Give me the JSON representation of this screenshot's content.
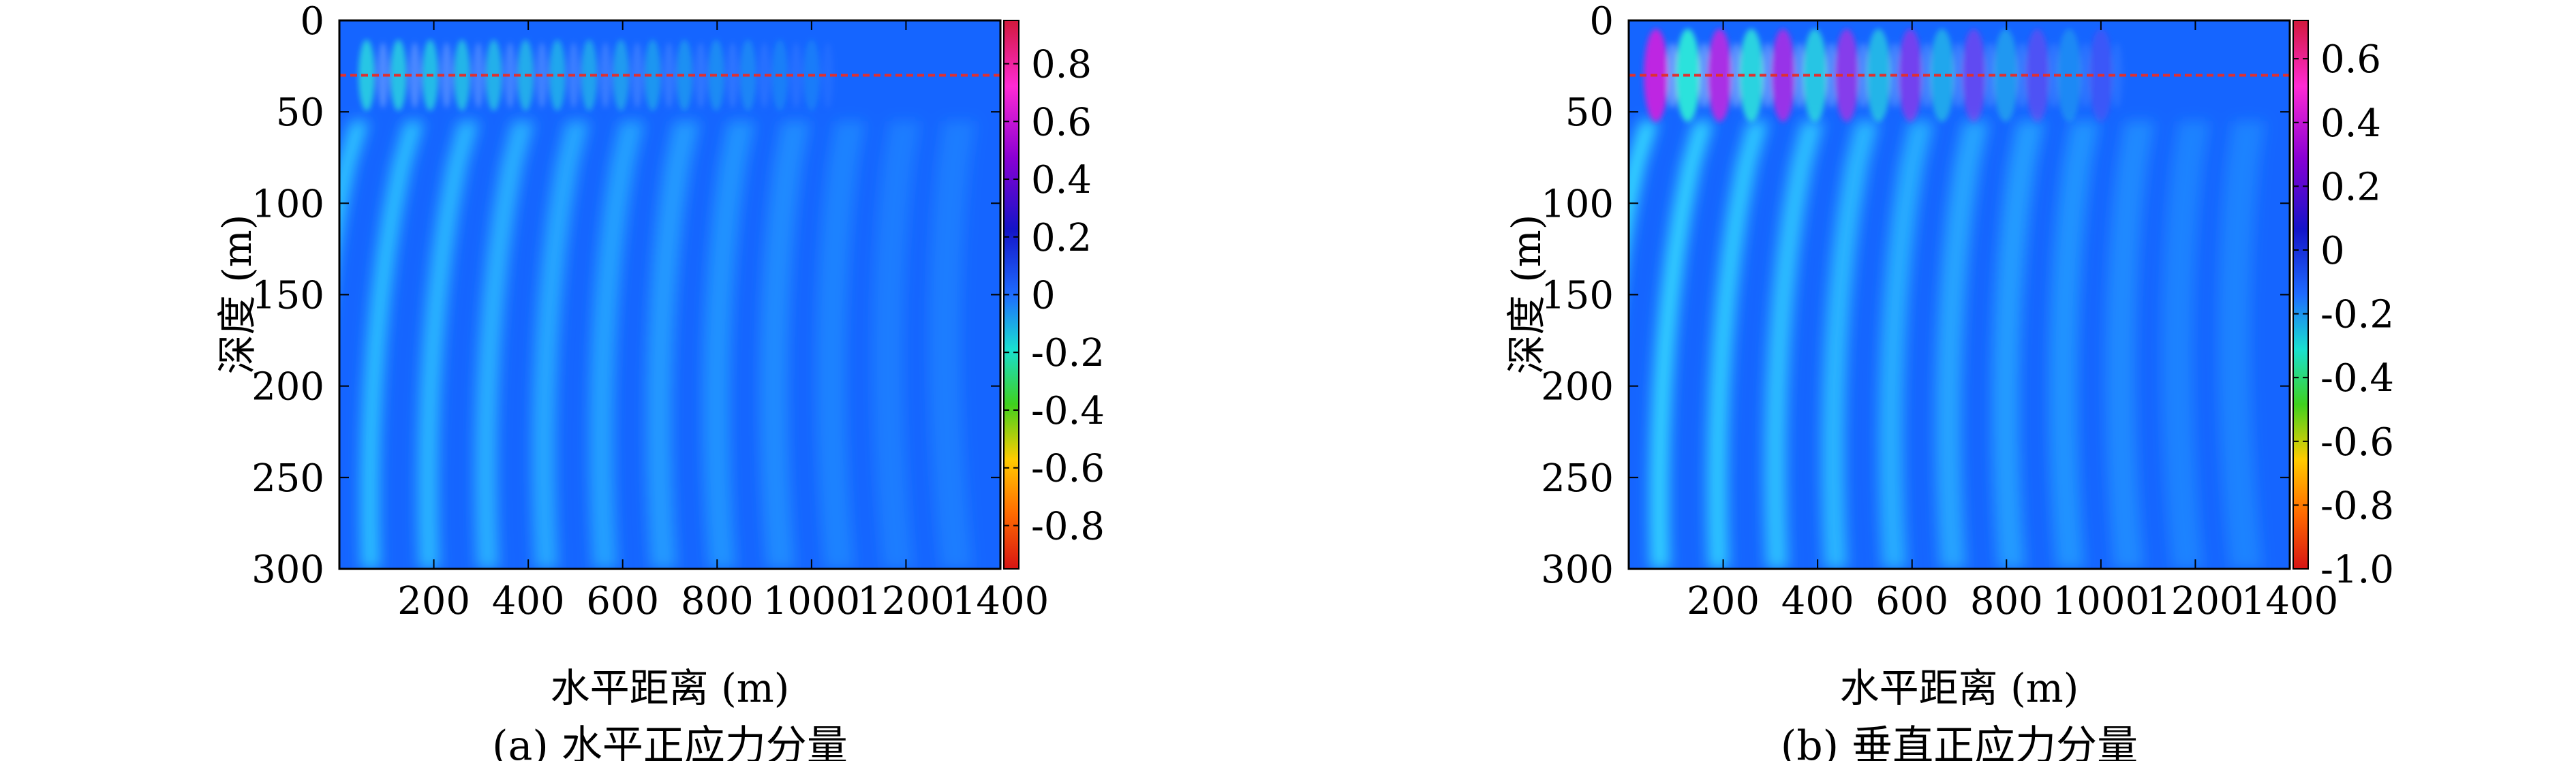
{
  "chart_data": [
    {
      "type": "heatmap",
      "caption": "(a) 水平正应力分量",
      "xlabel": "水平距离 (m)",
      "ylabel": "深度 (m)",
      "xlim": [
        0,
        1400
      ],
      "ylim": [
        300,
        0
      ],
      "xticks": [
        200,
        400,
        600,
        800,
        1000,
        1200,
        1400
      ],
      "yticks": [
        0,
        50,
        100,
        150,
        200,
        250,
        300
      ],
      "colorbar": {
        "range": [
          -0.95,
          0.95
        ],
        "ticks": [
          0.8,
          0.6,
          0.4,
          0.2,
          0,
          -0.2,
          -0.4,
          -0.6,
          -0.8
        ],
        "tick_labels": [
          "0.8",
          "0.6",
          "0.4",
          "0.2",
          "0",
          "-0.2",
          "-0.4",
          "-0.6",
          "-0.8"
        ]
      },
      "interface_depth": 30,
      "wavefield_extent": 1000,
      "amplitude_scale": 0.45
    },
    {
      "type": "heatmap",
      "caption": "(b) 垂直正应力分量",
      "xlabel": "水平距离 (m)",
      "ylabel": "深度 (m)",
      "xlim": [
        0,
        1400
      ],
      "ylim": [
        300,
        0
      ],
      "xticks": [
        200,
        400,
        600,
        800,
        1000,
        1200,
        1400
      ],
      "yticks": [
        0,
        50,
        100,
        150,
        200,
        250,
        300
      ],
      "colorbar": {
        "range": [
          -1.0,
          0.72
        ],
        "ticks": [
          0.6,
          0.4,
          0.2,
          0,
          -0.2,
          -0.4,
          -0.6,
          -0.8,
          -1.0
        ],
        "tick_labels": [
          "0.6",
          "0.4",
          "0.2",
          "0",
          "-0.2",
          "-0.4",
          "-0.6",
          "-0.8",
          "-1.0"
        ]
      },
      "interface_depth": 30,
      "wavefield_extent": 1000,
      "amplitude_scale": 0.8
    }
  ],
  "colors": {
    "background_field": "#1565ff",
    "interface_line": "#e03030",
    "colormap": [
      "#d61414",
      "#ff6a00",
      "#ffcc00",
      "#3fd11e",
      "#19e0d0",
      "#1e6cff",
      "#1414c8",
      "#8a00d4",
      "#ff2ad4",
      "#d2193c"
    ]
  }
}
